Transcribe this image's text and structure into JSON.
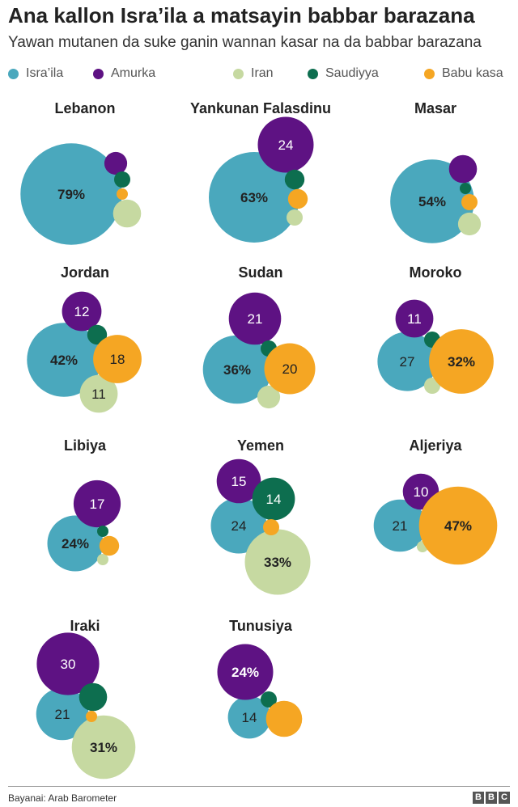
{
  "header": {
    "title": "Ana kallon Isra’ila a matsayin babbar barazana",
    "subtitle": "Yawan mutanen da suke ganin wannan kasar na da babbar barazana"
  },
  "colors": {
    "israel": "#4aa8bd",
    "usa": "#5e1283",
    "iran": "#c6d9a1",
    "saudi": "#0d6e4f",
    "other": "#f5a623"
  },
  "legend": [
    {
      "key": "israel",
      "label": "Isra’ila"
    },
    {
      "key": "usa",
      "label": "Amurka"
    },
    {
      "key": "iran",
      "label": "Iran"
    },
    {
      "key": "saudi",
      "label": "Saudiyya"
    },
    {
      "key": "other",
      "label": "Babu kasa"
    }
  ],
  "chart_data": {
    "type": "bubble-grid",
    "title": "Ana kallon Isra’ila a matsayin babbar barazana",
    "series_order": [
      "israel",
      "usa",
      "iran",
      "saudi",
      "other"
    ],
    "panels": [
      {
        "country": "Lebanon",
        "values": {
          "israel": 79,
          "usa": 4,
          "saudi": 2,
          "other": 1,
          "iran": 6
        },
        "labels": {
          "israel": "79%"
        }
      },
      {
        "country": "Yankunan Falasdinu",
        "values": {
          "israel": 63,
          "usa": 24,
          "saudi": 3,
          "other": 3,
          "iran": 2
        },
        "labels": {
          "israel": "63%",
          "usa": "24"
        }
      },
      {
        "country": "Masar",
        "values": {
          "israel": 54,
          "usa": 6,
          "saudi": 1,
          "other": 2,
          "iran": 4
        },
        "labels": {
          "israel": "54%"
        }
      },
      {
        "country": "Jordan",
        "values": {
          "israel": 42,
          "usa": 12,
          "saudi": 3,
          "other": 18,
          "iran": 11
        },
        "labels": {
          "israel": "42%",
          "usa": "12",
          "other": "18",
          "iran": "11"
        }
      },
      {
        "country": "Sudan",
        "values": {
          "israel": 36,
          "usa": 21,
          "saudi": 2,
          "other": 20,
          "iran": 4
        },
        "labels": {
          "israel": "36%",
          "usa": "21",
          "other": "20"
        }
      },
      {
        "country": "Moroko",
        "values": {
          "israel": 27,
          "usa": 11,
          "saudi": 2,
          "other": 32,
          "iran": 2
        },
        "labels": {
          "israel": "27",
          "usa": "11",
          "other": "32%"
        }
      },
      {
        "country": "Libiya",
        "values": {
          "israel": 24,
          "usa": 17,
          "saudi": 1,
          "other": 3,
          "iran": 1
        },
        "labels": {
          "israel": "24%",
          "usa": "17"
        }
      },
      {
        "country": "Yemen",
        "values": {
          "israel": 24,
          "usa": 15,
          "saudi": 14,
          "other": 2,
          "iran": 33
        },
        "labels": {
          "israel": "24",
          "usa": "15",
          "saudi": "14",
          "iran": "33%"
        }
      },
      {
        "country": "Aljeriya",
        "values": {
          "israel": 21,
          "usa": 10,
          "saudi": 0,
          "other": 47,
          "iran": 1
        },
        "labels": {
          "israel": "21",
          "usa": "10",
          "other": "47%"
        }
      },
      {
        "country": "Iraki",
        "values": {
          "israel": 21,
          "usa": 30,
          "saudi": 6,
          "other": 1,
          "iran": 31
        },
        "labels": {
          "israel": "21",
          "usa": "30",
          "iran": "31%"
        }
      },
      {
        "country": "Tunusiya",
        "values": {
          "israel": 14,
          "usa": 24,
          "saudi": 2,
          "other": 10,
          "iran": 0
        },
        "labels": {
          "israel": "14",
          "usa": "24%"
        }
      }
    ]
  },
  "footer": {
    "source": "Bayanai: Arab Barometer",
    "brand_letters": [
      "B",
      "B",
      "C"
    ]
  }
}
